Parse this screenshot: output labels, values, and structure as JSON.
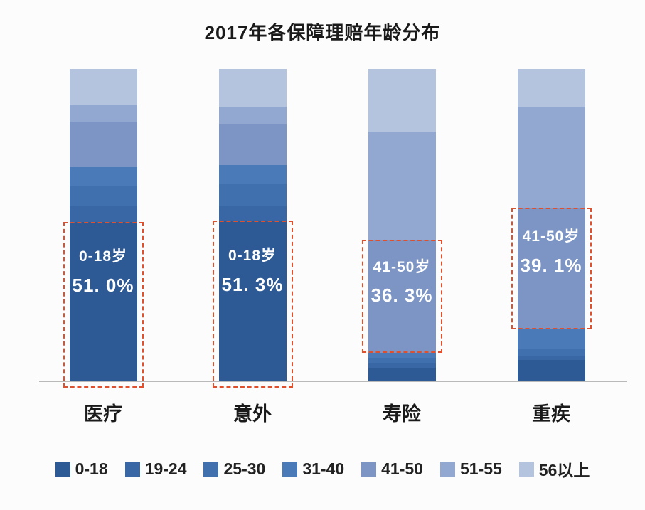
{
  "chart_data": {
    "type": "bar",
    "subtype": "stacked-percentage-bar",
    "title": "2017年各保障理赔年龄分布",
    "categories": [
      "医疗",
      "意外",
      "寿险",
      "重疾"
    ],
    "age_groups": [
      "0-18",
      "19-24",
      "25-30",
      "31-40",
      "41-50",
      "51-55",
      "56以上"
    ],
    "colors": [
      "#2d5a94",
      "#3967a5",
      "#4070ad",
      "#4a7ab8",
      "#7d95c5",
      "#93a8d0",
      "#b5c4de"
    ],
    "unit": "%",
    "ylim": [
      0,
      100
    ],
    "grid": false,
    "legend_position": "bottom",
    "values_by_category": {
      "医疗": [
        51.0,
        5.0,
        6.4,
        6.2,
        14.4,
        5.5,
        11.5
      ],
      "意外": [
        51.3,
        4.6,
        7.3,
        5.9,
        13.0,
        5.7,
        12.2
      ],
      "寿险": [
        4.0,
        1.5,
        1.5,
        2.0,
        36.3,
        34.7,
        20.0
      ],
      "重疾": [
        6.5,
        1.5,
        2.0,
        6.4,
        39.1,
        32.5,
        12.0
      ]
    },
    "annotations": [
      {
        "category": "医疗",
        "segment": "0-18",
        "label": "0-18岁",
        "value": "51. 0%"
      },
      {
        "category": "意外",
        "segment": "0-18",
        "label": "0-18岁",
        "value": "51. 3%"
      },
      {
        "category": "寿险",
        "segment": "41-50",
        "label": "41-50岁",
        "value": "36. 3%"
      },
      {
        "category": "重疾",
        "segment": "41-50",
        "label": "41-50岁",
        "value": "39. 1%"
      }
    ],
    "highlight_color": "#e0502d",
    "annotation_text_color": "#ffffff"
  }
}
